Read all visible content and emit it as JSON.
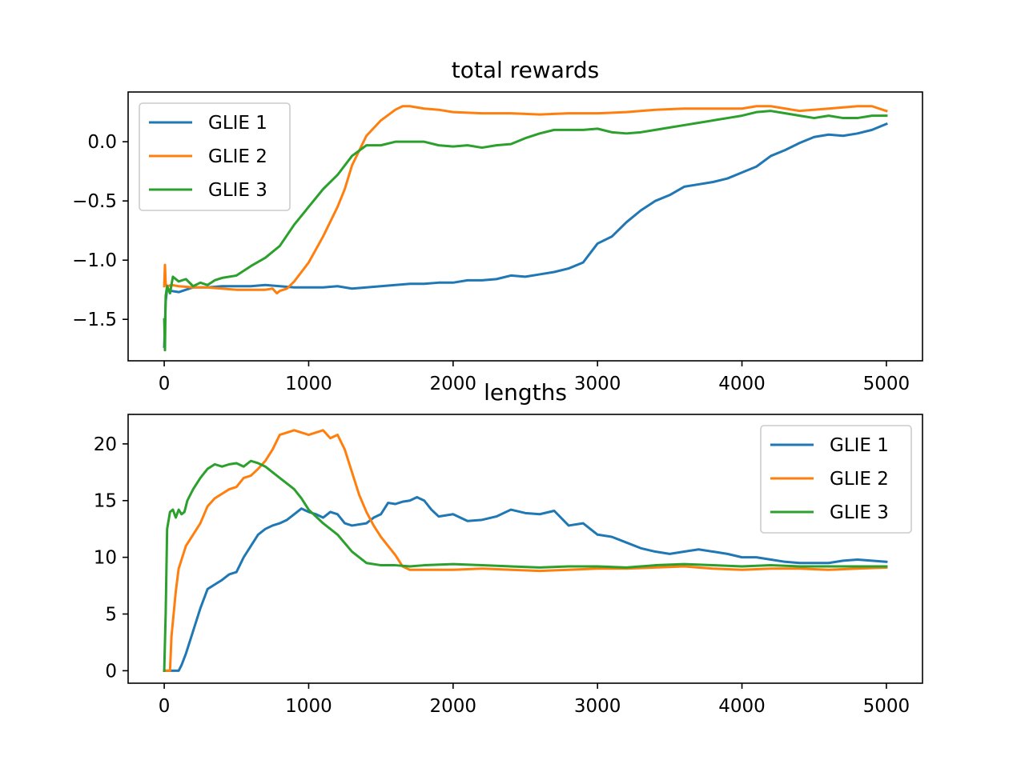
{
  "chart_data": [
    {
      "type": "line",
      "title": "total rewards",
      "xlabel": "",
      "ylabel": "",
      "xlim": [
        -250,
        5250
      ],
      "ylim": [
        -1.85,
        0.42
      ],
      "xticks": [
        0,
        1000,
        2000,
        3000,
        4000,
        5000
      ],
      "xtick_labels": [
        "0",
        "1000",
        "2000",
        "3000",
        "4000",
        "5000"
      ],
      "yticks": [
        0.0,
        -0.5,
        -1.0,
        -1.5
      ],
      "ytick_labels": [
        "0.0",
        "−0.5",
        "−1.0",
        "−1.5"
      ],
      "grid": false,
      "legend": "upper left",
      "series": [
        {
          "name": "GLIE 1",
          "color": "#1f77b4",
          "x": [
            0,
            10,
            20,
            50,
            100,
            150,
            200,
            300,
            400,
            500,
            600,
            700,
            800,
            900,
            1000,
            1100,
            1200,
            1300,
            1400,
            1500,
            1600,
            1700,
            1800,
            1900,
            2000,
            2100,
            2200,
            2300,
            2400,
            2500,
            2600,
            2700,
            2800,
            2900,
            3000,
            3100,
            3200,
            3300,
            3400,
            3500,
            3600,
            3700,
            3800,
            3900,
            4000,
            4100,
            4200,
            4300,
            4400,
            4500,
            4600,
            4700,
            4800,
            4900,
            5000
          ],
          "y": [
            -1.73,
            -1.35,
            -1.24,
            -1.26,
            -1.27,
            -1.25,
            -1.23,
            -1.23,
            -1.22,
            -1.22,
            -1.22,
            -1.21,
            -1.22,
            -1.23,
            -1.23,
            -1.23,
            -1.22,
            -1.24,
            -1.23,
            -1.22,
            -1.21,
            -1.2,
            -1.2,
            -1.19,
            -1.19,
            -1.17,
            -1.17,
            -1.16,
            -1.13,
            -1.14,
            -1.12,
            -1.1,
            -1.07,
            -1.02,
            -0.86,
            -0.8,
            -0.68,
            -0.58,
            -0.5,
            -0.45,
            -0.38,
            -0.36,
            -0.34,
            -0.31,
            -0.26,
            -0.21,
            -0.12,
            -0.07,
            -0.01,
            0.04,
            0.06,
            0.05,
            0.07,
            0.1,
            0.15
          ]
        },
        {
          "name": "GLIE 2",
          "color": "#ff7f0e",
          "x": [
            0,
            5,
            10,
            20,
            50,
            100,
            200,
            300,
            400,
            500,
            600,
            700,
            750,
            780,
            800,
            850,
            900,
            1000,
            1100,
            1200,
            1250,
            1300,
            1400,
            1500,
            1600,
            1650,
            1700,
            1800,
            1900,
            2000,
            2200,
            2400,
            2600,
            2800,
            3000,
            3200,
            3400,
            3600,
            3800,
            4000,
            4100,
            4200,
            4400,
            4600,
            4800,
            4900,
            5000
          ],
          "y": [
            -1.22,
            -1.04,
            -1.2,
            -1.22,
            -1.21,
            -1.22,
            -1.23,
            -1.23,
            -1.24,
            -1.25,
            -1.25,
            -1.25,
            -1.24,
            -1.28,
            -1.26,
            -1.24,
            -1.18,
            -1.02,
            -0.8,
            -0.55,
            -0.4,
            -0.2,
            0.05,
            0.18,
            0.27,
            0.3,
            0.3,
            0.28,
            0.27,
            0.25,
            0.24,
            0.24,
            0.23,
            0.24,
            0.24,
            0.25,
            0.27,
            0.28,
            0.28,
            0.28,
            0.3,
            0.3,
            0.26,
            0.28,
            0.3,
            0.3,
            0.26
          ]
        },
        {
          "name": "GLIE 3",
          "color": "#2ca02c",
          "x": [
            0,
            5,
            10,
            20,
            40,
            60,
            100,
            150,
            200,
            250,
            300,
            350,
            400,
            500,
            600,
            700,
            800,
            900,
            1000,
            1100,
            1200,
            1300,
            1400,
            1500,
            1600,
            1700,
            1800,
            1900,
            2000,
            2100,
            2200,
            2300,
            2400,
            2500,
            2600,
            2700,
            2800,
            2900,
            3000,
            3100,
            3200,
            3300,
            3400,
            3500,
            3600,
            3700,
            3800,
            3900,
            4000,
            4100,
            4200,
            4300,
            4400,
            4500,
            4600,
            4700,
            4800,
            4900,
            5000
          ],
          "y": [
            -1.5,
            -1.76,
            -1.3,
            -1.22,
            -1.28,
            -1.14,
            -1.18,
            -1.16,
            -1.22,
            -1.19,
            -1.21,
            -1.17,
            -1.15,
            -1.13,
            -1.05,
            -0.98,
            -0.88,
            -0.7,
            -0.55,
            -0.4,
            -0.28,
            -0.12,
            -0.03,
            -0.03,
            0.0,
            0.0,
            0.0,
            -0.03,
            -0.04,
            -0.03,
            -0.05,
            -0.03,
            -0.02,
            0.03,
            0.07,
            0.1,
            0.1,
            0.1,
            0.11,
            0.08,
            0.07,
            0.08,
            0.1,
            0.12,
            0.14,
            0.16,
            0.18,
            0.2,
            0.22,
            0.25,
            0.26,
            0.24,
            0.22,
            0.2,
            0.22,
            0.2,
            0.2,
            0.22,
            0.22
          ]
        }
      ]
    },
    {
      "type": "line",
      "title": "lengths",
      "xlabel": "",
      "ylabel": "",
      "xlim": [
        -250,
        5250
      ],
      "ylim": [
        -1.1,
        22.6
      ],
      "xticks": [
        0,
        1000,
        2000,
        3000,
        4000,
        5000
      ],
      "xtick_labels": [
        "0",
        "1000",
        "2000",
        "3000",
        "4000",
        "5000"
      ],
      "yticks": [
        0,
        5,
        10,
        15,
        20
      ],
      "ytick_labels": [
        "0",
        "5",
        "10",
        "15",
        "20"
      ],
      "grid": false,
      "legend": "upper right",
      "series": [
        {
          "name": "GLIE 1",
          "color": "#1f77b4",
          "x": [
            0,
            100,
            120,
            150,
            200,
            250,
            300,
            350,
            400,
            450,
            500,
            550,
            600,
            650,
            700,
            750,
            800,
            850,
            900,
            950,
            1000,
            1050,
            1100,
            1150,
            1200,
            1250,
            1300,
            1350,
            1400,
            1450,
            1500,
            1550,
            1600,
            1650,
            1700,
            1750,
            1800,
            1850,
            1900,
            2000,
            2100,
            2200,
            2300,
            2400,
            2500,
            2600,
            2700,
            2800,
            2900,
            3000,
            3100,
            3200,
            3300,
            3400,
            3500,
            3600,
            3700,
            3800,
            3900,
            4000,
            4100,
            4200,
            4300,
            4400,
            4500,
            4600,
            4700,
            4800,
            4900,
            5000
          ],
          "y": [
            0,
            0,
            0.5,
            1.5,
            3.5,
            5.5,
            7.2,
            7.6,
            8.0,
            8.5,
            8.7,
            10.0,
            11.0,
            12.0,
            12.5,
            12.8,
            13.0,
            13.3,
            13.8,
            14.3,
            14.0,
            13.8,
            13.5,
            14.0,
            13.8,
            13.0,
            12.8,
            12.9,
            13.0,
            13.5,
            13.8,
            14.8,
            14.7,
            14.9,
            15.0,
            15.3,
            15.0,
            14.2,
            13.6,
            13.8,
            13.2,
            13.3,
            13.6,
            14.2,
            13.9,
            13.8,
            14.1,
            12.8,
            13.0,
            12.0,
            11.8,
            11.3,
            10.8,
            10.5,
            10.3,
            10.5,
            10.7,
            10.5,
            10.3,
            10.0,
            10.0,
            9.8,
            9.6,
            9.5,
            9.5,
            9.5,
            9.7,
            9.8,
            9.7,
            9.6
          ]
        },
        {
          "name": "GLIE 2",
          "color": "#ff7f0e",
          "x": [
            0,
            40,
            50,
            80,
            100,
            150,
            200,
            250,
            300,
            350,
            400,
            450,
            500,
            550,
            600,
            650,
            700,
            750,
            800,
            850,
            900,
            950,
            1000,
            1050,
            1100,
            1150,
            1200,
            1250,
            1300,
            1350,
            1400,
            1450,
            1500,
            1550,
            1600,
            1650,
            1700,
            1800,
            2000,
            2200,
            2400,
            2600,
            2800,
            3000,
            3200,
            3400,
            3600,
            3800,
            4000,
            4200,
            4400,
            4600,
            4800,
            5000
          ],
          "y": [
            0,
            0,
            3.0,
            7.0,
            9.0,
            11.0,
            12.0,
            13.0,
            14.5,
            15.2,
            15.6,
            16.0,
            16.2,
            17.0,
            17.2,
            17.8,
            18.5,
            19.5,
            20.8,
            21.0,
            21.2,
            21.0,
            20.8,
            21.0,
            21.2,
            20.5,
            20.8,
            19.5,
            17.5,
            15.5,
            14.0,
            12.8,
            11.8,
            11.0,
            10.2,
            9.2,
            8.9,
            8.9,
            8.9,
            9.0,
            8.9,
            8.8,
            8.9,
            9.0,
            9.0,
            9.1,
            9.2,
            9.0,
            8.9,
            9.0,
            9.0,
            8.9,
            9.0,
            9.1
          ]
        },
        {
          "name": "GLIE 3",
          "color": "#2ca02c",
          "x": [
            0,
            10,
            20,
            40,
            60,
            80,
            100,
            120,
            140,
            160,
            200,
            250,
            300,
            350,
            400,
            450,
            500,
            550,
            600,
            650,
            700,
            750,
            800,
            850,
            900,
            950,
            1000,
            1100,
            1200,
            1300,
            1400,
            1500,
            1600,
            1700,
            1800,
            2000,
            2200,
            2400,
            2600,
            2800,
            3000,
            3200,
            3400,
            3600,
            3800,
            4000,
            4200,
            4400,
            4600,
            4800,
            5000
          ],
          "y": [
            0,
            5.0,
            12.5,
            14.0,
            14.2,
            13.5,
            14.2,
            13.8,
            14.0,
            15.0,
            16.0,
            17.0,
            17.8,
            18.2,
            18.0,
            18.2,
            18.3,
            18.0,
            18.5,
            18.3,
            18.0,
            17.5,
            17.0,
            16.5,
            16.0,
            15.2,
            14.2,
            13.0,
            12.0,
            10.5,
            9.5,
            9.3,
            9.3,
            9.2,
            9.3,
            9.4,
            9.3,
            9.2,
            9.1,
            9.2,
            9.2,
            9.1,
            9.3,
            9.4,
            9.3,
            9.2,
            9.3,
            9.2,
            9.2,
            9.2,
            9.2
          ]
        }
      ]
    }
  ]
}
